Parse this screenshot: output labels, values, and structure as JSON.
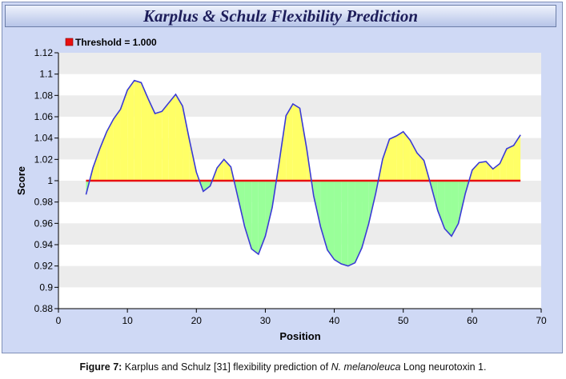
{
  "chart_data": {
    "type": "area",
    "title": "Karplus & Schulz Flexibility Prediction",
    "xlabel": "Position",
    "ylabel": "Score",
    "xlim": [
      0,
      70
    ],
    "ylim": [
      0.88,
      1.12
    ],
    "x_ticks": [
      0,
      10,
      20,
      30,
      40,
      50,
      60,
      70
    ],
    "y_ticks": [
      0.88,
      0.9,
      0.92,
      0.94,
      0.96,
      0.98,
      1,
      1.02,
      1.04,
      1.06,
      1.08,
      1.1,
      1.12
    ],
    "threshold": {
      "label": "Threshold = 1.000",
      "value": 1.0,
      "color": "#e81010"
    },
    "legend_position": "top-left",
    "grid": "horizontal-bands",
    "colors": {
      "line": "#3a3ad6",
      "above": "#ffff66",
      "below": "#99ff99",
      "band": "#ececec",
      "frame": "#cfd9f5"
    },
    "series": [
      {
        "x": [
          4,
          5,
          6,
          7,
          8,
          9,
          10,
          11,
          12,
          13,
          14,
          15,
          16,
          17,
          18,
          19,
          20,
          21,
          22,
          23,
          24,
          25,
          26,
          27,
          28,
          29,
          30,
          31,
          32,
          33,
          34,
          35,
          36,
          37,
          38,
          39,
          40,
          41,
          42,
          43,
          44,
          45,
          46,
          47,
          48,
          49,
          50,
          51,
          52,
          53,
          54,
          55,
          56,
          57,
          58,
          59,
          60,
          61,
          62,
          63,
          64,
          65,
          66,
          67
        ],
        "y": [
          0.987,
          1.012,
          1.03,
          1.046,
          1.058,
          1.067,
          1.085,
          1.094,
          1.092,
          1.077,
          1.063,
          1.065,
          1.073,
          1.081,
          1.07,
          1.038,
          1.008,
          0.99,
          0.995,
          1.012,
          1.02,
          1.013,
          0.985,
          0.957,
          0.936,
          0.931,
          0.948,
          0.975,
          1.017,
          1.061,
          1.072,
          1.068,
          1.03,
          0.986,
          0.957,
          0.935,
          0.926,
          0.922,
          0.92,
          0.923,
          0.937,
          0.96,
          0.988,
          1.02,
          1.039,
          1.042,
          1.046,
          1.038,
          1.026,
          1.019,
          0.996,
          0.972,
          0.955,
          0.948,
          0.96,
          0.988,
          1.01,
          1.017,
          1.018,
          1.011,
          1.016,
          1.03,
          1.033,
          1.043
        ]
      }
    ]
  },
  "caption": {
    "label": "Figure 7:",
    "text_before": " Karplus and Schulz [31] flexibility prediction of ",
    "species": "N. melanoleuca",
    "text_after": " Long neurotoxin 1."
  }
}
